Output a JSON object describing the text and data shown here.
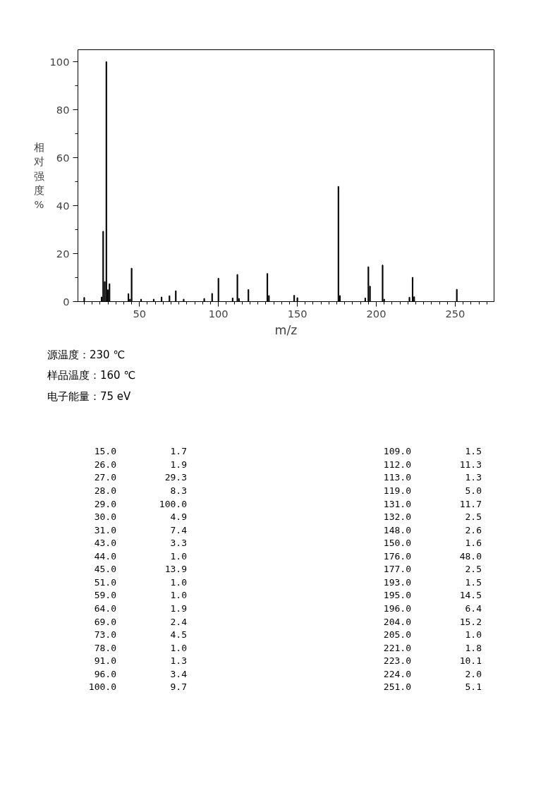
{
  "chart_data": [
    {
      "type": "bar",
      "xlabel": "m/z",
      "ylabel": "相对强度%",
      "x": [
        15,
        26,
        27,
        28,
        29,
        30,
        31,
        43,
        44,
        45,
        51,
        59,
        64,
        69,
        73,
        78,
        91,
        96,
        100,
        109,
        112,
        113,
        119,
        131,
        132,
        148,
        150,
        176,
        177,
        193,
        195,
        196,
        204,
        205,
        221,
        223,
        224,
        251
      ],
      "values": [
        1.7,
        1.9,
        29.3,
        8.3,
        100.0,
        4.9,
        7.4,
        3.3,
        1.0,
        13.9,
        1.0,
        1.0,
        1.9,
        2.4,
        4.5,
        1.0,
        1.3,
        3.4,
        9.7,
        1.5,
        11.3,
        1.3,
        5.0,
        11.7,
        2.5,
        2.6,
        1.6,
        48.0,
        2.5,
        1.5,
        14.5,
        6.4,
        15.2,
        1.0,
        1.8,
        10.1,
        2.0,
        5.1
      ],
      "color": "#000000",
      "xlim": [
        11,
        274.6
      ],
      "ylim": [
        0,
        105
      ],
      "xticks": [
        50,
        100,
        150,
        200,
        250,
        {
          "value": 15,
          "label": null
        },
        {
          "value": 20,
          "label": null
        },
        {
          "value": 25,
          "label": null
        },
        {
          "value": 30,
          "label": null
        },
        {
          "value": 35,
          "label": null
        },
        {
          "value": 40,
          "label": null
        },
        {
          "value": 45,
          "label": null
        },
        {
          "value": 55,
          "label": null
        },
        {
          "value": 60,
          "label": null
        },
        {
          "value": 65,
          "label": null
        },
        {
          "value": 70,
          "label": null
        },
        {
          "value": 75,
          "label": null
        },
        {
          "value": 80,
          "label": null
        },
        {
          "value": 85,
          "label": null
        },
        {
          "value": 90,
          "label": null
        },
        {
          "value": 95,
          "label": null
        },
        {
          "value": 105,
          "label": null
        },
        {
          "value": 110,
          "label": null
        },
        {
          "value": 115,
          "label": null
        },
        {
          "value": 120,
          "label": null
        },
        {
          "value": 125,
          "label": null
        },
        {
          "value": 130,
          "label": null
        },
        {
          "value": 135,
          "label": null
        },
        {
          "value": 140,
          "label": null
        },
        {
          "value": 145,
          "label": null
        },
        {
          "value": 155,
          "label": null
        },
        {
          "value": 160,
          "label": null
        },
        {
          "value": 165,
          "label": null
        },
        {
          "value": 170,
          "label": null
        },
        {
          "value": 175,
          "label": null
        },
        {
          "value": 180,
          "label": null
        },
        {
          "value": 185,
          "label": null
        },
        {
          "value": 190,
          "label": null
        },
        {
          "value": 195,
          "label": null
        },
        {
          "value": 205,
          "label": null
        },
        {
          "value": 210,
          "label": null
        },
        {
          "value": 215,
          "label": null
        },
        {
          "value": 220,
          "label": null
        },
        {
          "value": 225,
          "label": null
        },
        {
          "value": 230,
          "label": null
        },
        {
          "value": 235,
          "label": null
        },
        {
          "value": 240,
          "label": null
        },
        {
          "value": 245,
          "label": null
        },
        {
          "value": 255,
          "label": null
        },
        {
          "value": 260,
          "label": null
        },
        {
          "value": 265,
          "label": null
        },
        {
          "value": 270,
          "label": null
        }
      ],
      "yticks": [
        0,
        20,
        40,
        60,
        80,
        100,
        {
          "value": 10,
          "label": null
        },
        {
          "value": 30,
          "label": null
        },
        {
          "value": 50,
          "label": null
        },
        {
          "value": 70,
          "label": null
        },
        {
          "value": 90,
          "label": null
        }
      ],
      "grid": false,
      "annotations": [
        "源温度：230 ℃",
        "样品温度：160 ℃",
        "电子能量：75 eV"
      ]
    },
    {
      "type": "other",
      "categories": [
        "15.0",
        "26.0",
        "27.0",
        "28.0",
        "29.0",
        "30.0",
        "31.0",
        "43.0",
        "44.0",
        "45.0",
        "51.0",
        "59.0",
        "64.0",
        "69.0",
        "73.0",
        "78.0",
        "91.0",
        "96.0",
        "100.0",
        "109.0",
        "112.0",
        "113.0",
        "119.0",
        "131.0",
        "132.0",
        "148.0",
        "150.0",
        "176.0",
        "177.0",
        "193.0",
        "195.0",
        "196.0",
        "204.0",
        "205.0",
        "221.0",
        "223.0",
        "224.0",
        "251.0"
      ],
      "value_labels": [
        "1.7",
        "1.9",
        "29.3",
        "8.3",
        "100.0",
        "4.9",
        "7.4",
        "3.3",
        "1.0",
        "13.9",
        "1.0",
        "1.0",
        "1.9",
        "2.4",
        "4.5",
        "1.0",
        "1.3",
        "3.4",
        "9.7",
        "1.5",
        "11.3",
        "1.3",
        "5.0",
        "11.7",
        "2.5",
        "2.6",
        "1.6",
        "48.0",
        "2.5",
        "1.5",
        "14.5",
        "6.4",
        "15.2",
        "1.0",
        "1.8",
        "10.1",
        "2.0",
        "5.1"
      ]
    }
  ]
}
